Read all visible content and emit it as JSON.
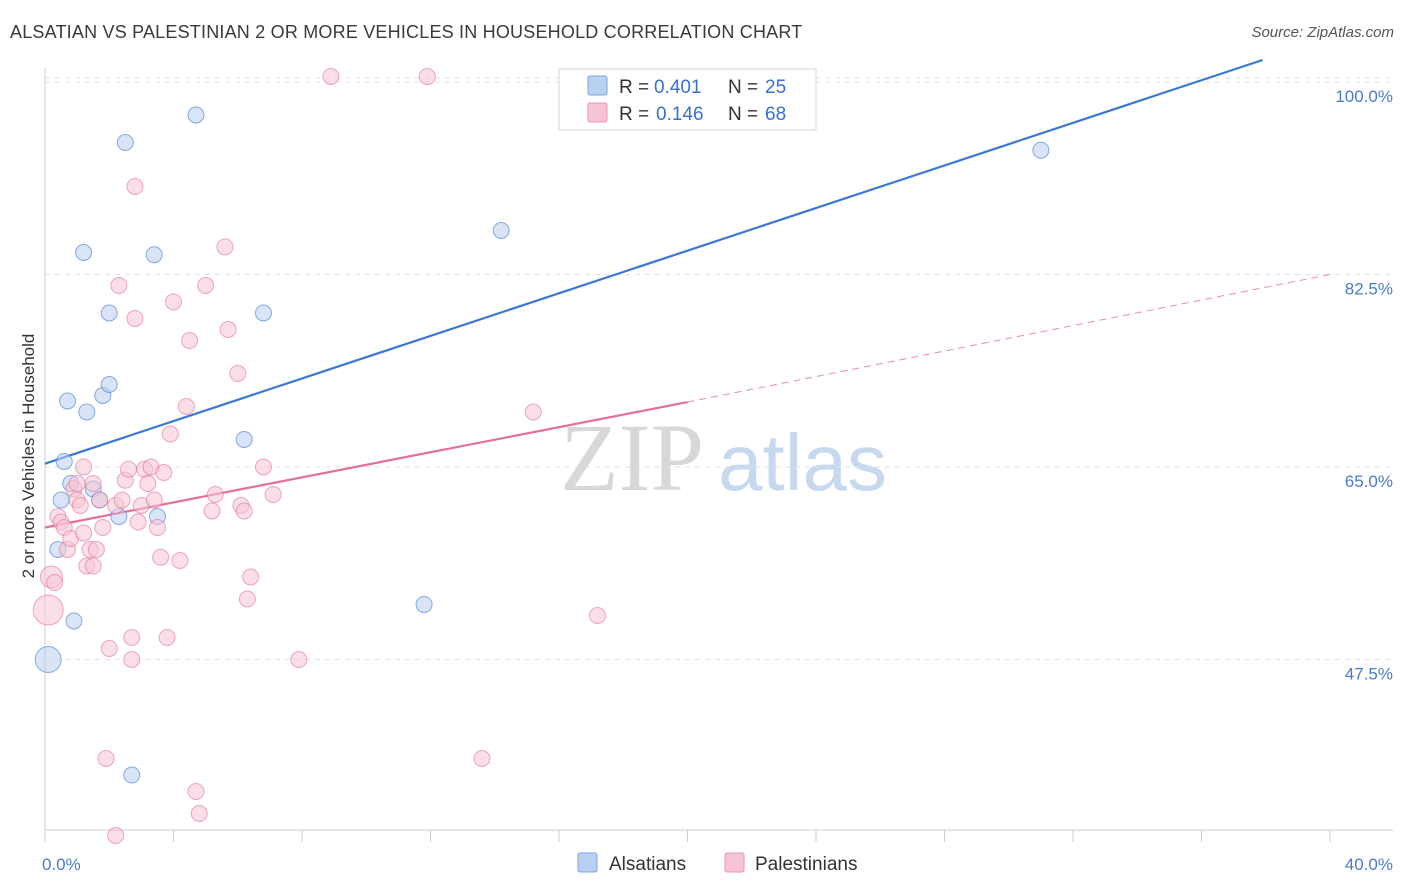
{
  "title": "ALSATIAN VS PALESTINIAN 2 OR MORE VEHICLES IN HOUSEHOLD CORRELATION CHART",
  "source": "Source: ZipAtlas.com",
  "watermark": {
    "zip": "ZIP",
    "atlas": "atlas"
  },
  "colors": {
    "blue": "#3a78d4",
    "blue_fill": "#b9d0f0",
    "pink": "#e56f98",
    "pink_fill": "#f7c4d4",
    "grid": "#e2e2e2",
    "axis_text": "#4a7cc9"
  },
  "chart_data": {
    "type": "scatter",
    "title": "ALSATIAN VS PALESTINIAN 2 OR MORE VEHICLES IN HOUSEHOLD CORRELATION CHART",
    "xlabel": "",
    "ylabel": "2 or more Vehicles in Household",
    "xlim": [
      0,
      40
    ],
    "ylim": [
      32,
      102
    ],
    "x_tick_labels": [
      "0.0%",
      "40.0%"
    ],
    "y_ticks": [
      47.5,
      65.0,
      82.5,
      100.0
    ],
    "y_tick_labels": [
      "47.5%",
      "65.0%",
      "82.5%",
      "100.0%"
    ],
    "legend": {
      "r_label": "R =",
      "n_label": "N =",
      "entries": [
        {
          "name": "Alsatians",
          "r": "0.401",
          "n": "25"
        },
        {
          "name": "Palestinians",
          "r": "0.146",
          "n": "68"
        }
      ]
    },
    "series": [
      {
        "name": "Alsatians",
        "color": "blue",
        "trend": {
          "x0": 0,
          "y0": 65.3,
          "x1": 37.9,
          "y1": 102.0
        },
        "points": [
          [
            0.1,
            47.5,
            26
          ],
          [
            0.4,
            57.5,
            16
          ],
          [
            0.5,
            62.0,
            16
          ],
          [
            0.6,
            65.5,
            16
          ],
          [
            0.7,
            71.0,
            16
          ],
          [
            0.8,
            63.5,
            16
          ],
          [
            0.9,
            51.0,
            16
          ],
          [
            1.2,
            84.5,
            16
          ],
          [
            1.3,
            70.0,
            16
          ],
          [
            1.5,
            63.0,
            16
          ],
          [
            1.7,
            62.0,
            16
          ],
          [
            1.8,
            71.5,
            16
          ],
          [
            2.0,
            72.5,
            16
          ],
          [
            2.0,
            79.0,
            16
          ],
          [
            2.3,
            60.5,
            16
          ],
          [
            2.5,
            94.5,
            16
          ],
          [
            2.7,
            37.0,
            16
          ],
          [
            3.4,
            84.3,
            16
          ],
          [
            3.5,
            60.5,
            16
          ],
          [
            4.7,
            97.0,
            16
          ],
          [
            6.2,
            67.5,
            16
          ],
          [
            6.8,
            79.0,
            16
          ],
          [
            11.8,
            52.5,
            16
          ],
          [
            14.2,
            86.5,
            16
          ],
          [
            31.0,
            93.8,
            16
          ]
        ]
      },
      {
        "name": "Palestinians",
        "color": "pink",
        "trend": {
          "x0": 0,
          "y0": 59.5,
          "x1": 20.0,
          "y1": 70.9
        },
        "trend_dashed": {
          "x0": 20.0,
          "y0": 70.9,
          "x1": 40.0,
          "y1": 82.5
        },
        "points": [
          [
            0.1,
            52.0,
            30
          ],
          [
            0.2,
            55.0,
            22
          ],
          [
            0.4,
            60.5,
            16
          ],
          [
            0.5,
            60.0,
            16
          ],
          [
            0.6,
            59.5,
            16
          ],
          [
            0.7,
            57.5,
            16
          ],
          [
            0.8,
            58.5,
            16
          ],
          [
            0.9,
            63.0,
            16
          ],
          [
            1.0,
            62.0,
            16
          ],
          [
            1.1,
            61.5,
            16
          ],
          [
            1.2,
            59.0,
            16
          ],
          [
            1.2,
            65.0,
            16
          ],
          [
            1.3,
            56.0,
            16
          ],
          [
            1.4,
            57.5,
            16
          ],
          [
            1.5,
            56.0,
            16
          ],
          [
            1.5,
            63.5,
            16
          ],
          [
            1.6,
            57.5,
            16
          ],
          [
            1.7,
            62.0,
            16
          ],
          [
            1.8,
            59.5,
            16
          ],
          [
            1.9,
            38.5,
            16
          ],
          [
            2.0,
            48.5,
            16
          ],
          [
            2.2,
            61.5,
            16
          ],
          [
            2.2,
            31.5,
            16
          ],
          [
            2.3,
            81.5,
            16
          ],
          [
            2.4,
            62.0,
            16
          ],
          [
            2.5,
            63.8,
            16
          ],
          [
            2.6,
            64.8,
            16
          ],
          [
            2.7,
            47.5,
            16
          ],
          [
            2.7,
            49.5,
            16
          ],
          [
            2.8,
            90.5,
            16
          ],
          [
            2.8,
            78.5,
            16
          ],
          [
            3.0,
            61.5,
            16
          ],
          [
            3.1,
            64.8,
            16
          ],
          [
            3.2,
            63.5,
            16
          ],
          [
            3.3,
            65.0,
            16
          ],
          [
            3.4,
            62.0,
            16
          ],
          [
            3.5,
            59.5,
            16
          ],
          [
            3.6,
            56.8,
            16
          ],
          [
            3.7,
            64.5,
            16
          ],
          [
            3.8,
            49.5,
            16
          ],
          [
            3.9,
            68.0,
            16
          ],
          [
            4.0,
            80.0,
            16
          ],
          [
            4.2,
            56.5,
            16
          ],
          [
            4.4,
            70.5,
            16
          ],
          [
            4.5,
            76.5,
            16
          ],
          [
            4.7,
            35.5,
            16
          ],
          [
            4.8,
            33.5,
            16
          ],
          [
            5.0,
            81.5,
            16
          ],
          [
            5.2,
            61.0,
            16
          ],
          [
            5.3,
            62.5,
            16
          ],
          [
            5.6,
            85.0,
            16
          ],
          [
            5.7,
            77.5,
            16
          ],
          [
            6.0,
            73.5,
            16
          ],
          [
            6.1,
            61.5,
            16
          ],
          [
            6.2,
            61.0,
            16
          ],
          [
            6.3,
            53.0,
            16
          ],
          [
            6.4,
            55.0,
            16
          ],
          [
            6.8,
            65.0,
            16
          ],
          [
            7.1,
            62.5,
            16
          ],
          [
            7.9,
            47.5,
            16
          ],
          [
            8.9,
            100.5,
            16
          ],
          [
            11.9,
            100.5,
            16
          ],
          [
            13.6,
            38.5,
            16
          ],
          [
            15.2,
            70.0,
            16
          ],
          [
            17.2,
            51.5,
            16
          ],
          [
            0.3,
            54.5,
            16
          ],
          [
            1.0,
            63.5,
            16
          ],
          [
            2.9,
            60.0,
            16
          ]
        ]
      }
    ]
  }
}
